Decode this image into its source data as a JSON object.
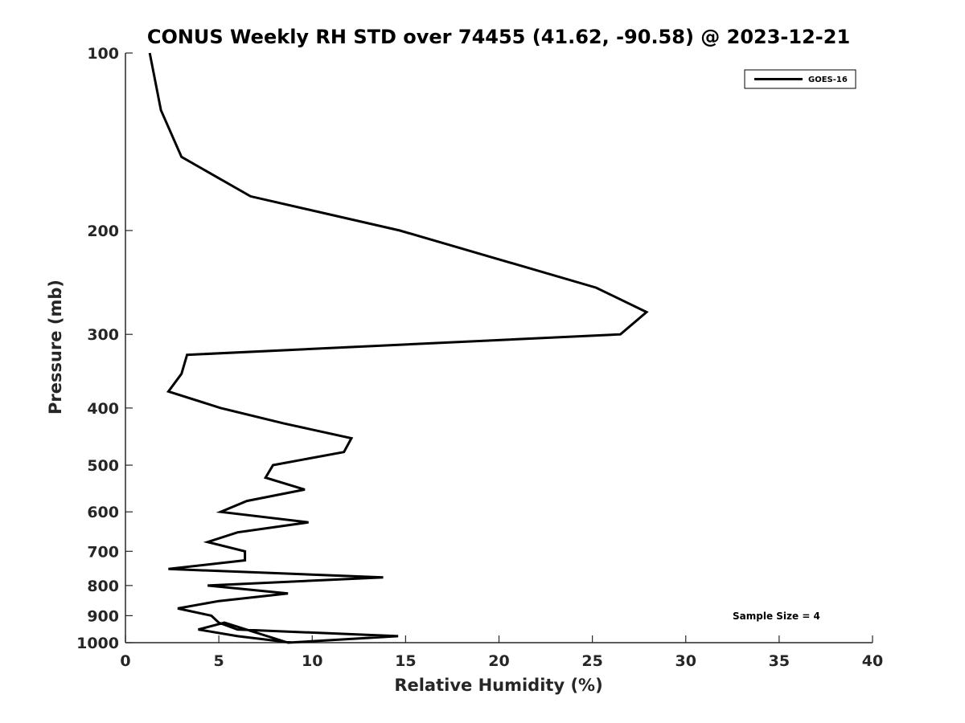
{
  "chart_data": {
    "type": "line",
    "title": "CONUS Weekly RH STD over 74455 (41.62, -90.58) @ 2023-12-21",
    "xlabel": "Relative Humidity (%)",
    "ylabel": "Pressure (mb)",
    "xlim": [
      0,
      40
    ],
    "ylim": [
      100,
      1000
    ],
    "y_scale": "log",
    "y_reversed": true,
    "x_ticks": [
      0,
      5,
      10,
      15,
      20,
      25,
      30,
      35,
      40
    ],
    "y_ticks": [
      100,
      200,
      300,
      400,
      500,
      600,
      700,
      800,
      900,
      1000
    ],
    "grid": false,
    "legend_position": "top-right",
    "annotation": "Sample Size = 4",
    "series": [
      {
        "name": "GOES-16",
        "color": "#000000",
        "points": [
          {
            "x": 1.3,
            "y": 100
          },
          {
            "x": 1.9,
            "y": 125
          },
          {
            "x": 3.0,
            "y": 150
          },
          {
            "x": 6.7,
            "y": 175
          },
          {
            "x": 14.7,
            "y": 200
          },
          {
            "x": 25.2,
            "y": 250
          },
          {
            "x": 27.9,
            "y": 275
          },
          {
            "x": 26.5,
            "y": 300
          },
          {
            "x": 3.3,
            "y": 325
          },
          {
            "x": 3.0,
            "y": 350
          },
          {
            "x": 2.3,
            "y": 375
          },
          {
            "x": 5.1,
            "y": 400
          },
          {
            "x": 8.5,
            "y": 425
          },
          {
            "x": 12.1,
            "y": 450
          },
          {
            "x": 11.7,
            "y": 475
          },
          {
            "x": 7.9,
            "y": 500
          },
          {
            "x": 7.5,
            "y": 525
          },
          {
            "x": 9.6,
            "y": 550
          },
          {
            "x": 6.5,
            "y": 575
          },
          {
            "x": 5.1,
            "y": 600
          },
          {
            "x": 9.8,
            "y": 625
          },
          {
            "x": 6.0,
            "y": 650
          },
          {
            "x": 4.4,
            "y": 675
          },
          {
            "x": 6.4,
            "y": 700
          },
          {
            "x": 6.4,
            "y": 725
          },
          {
            "x": 2.3,
            "y": 750
          },
          {
            "x": 13.8,
            "y": 775
          },
          {
            "x": 4.4,
            "y": 800
          },
          {
            "x": 8.7,
            "y": 825
          },
          {
            "x": 5.0,
            "y": 850
          },
          {
            "x": 2.8,
            "y": 875
          },
          {
            "x": 4.6,
            "y": 900
          },
          {
            "x": 5.0,
            "y": 925
          },
          {
            "x": 6.0,
            "y": 950
          },
          {
            "x": 14.6,
            "y": 975
          },
          {
            "x": 8.7,
            "y": 1000
          },
          {
            "x": 5.3,
            "y": 925
          },
          {
            "x": 3.9,
            "y": 950
          },
          {
            "x": 6.0,
            "y": 975
          },
          {
            "x": 8.9,
            "y": 1000
          }
        ]
      }
    ]
  }
}
